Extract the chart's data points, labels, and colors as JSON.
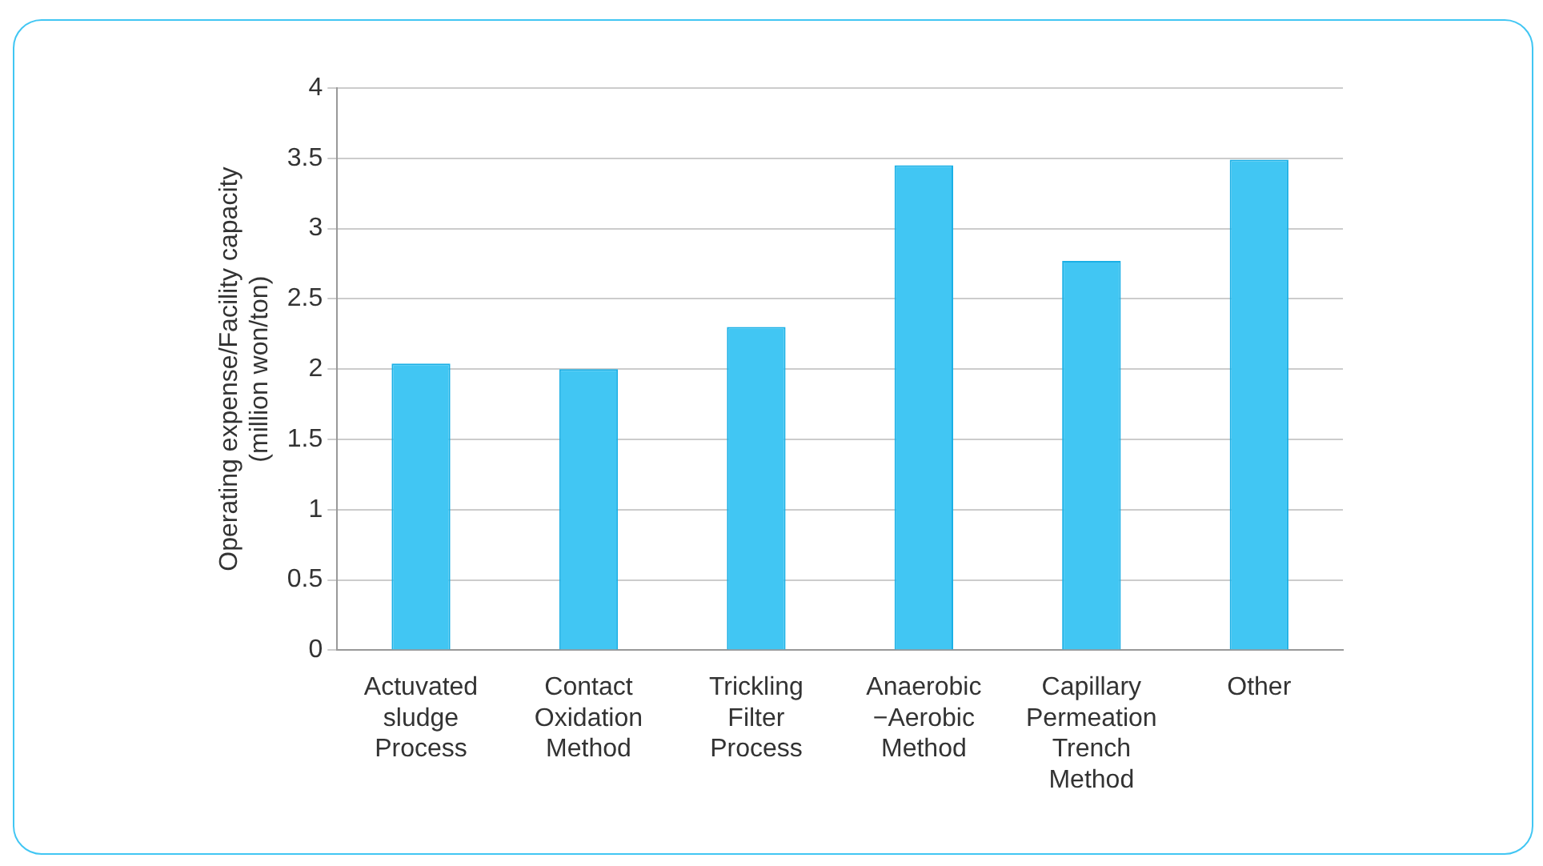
{
  "chart_data": {
    "type": "bar",
    "ylabel": "Operating expense/Facility capacity\n(million won/ton)",
    "categories": [
      "Actuvated\nsludge\nProcess",
      "Contact\nOxidation\nMethod",
      "Trickling\nFilter\nProcess",
      "Anaerobic\n−Aerobic\nMethod",
      "Capillary\nPermeation\nTrench\nMethod",
      "Other"
    ],
    "values": [
      2.04,
      2.0,
      2.3,
      3.45,
      2.77,
      3.49
    ],
    "color": "#41c6f3",
    "ylim": [
      0,
      4
    ],
    "yticks": [
      0,
      0.5,
      1,
      1.5,
      2,
      2.5,
      3,
      3.5,
      4
    ],
    "grid": "y"
  }
}
